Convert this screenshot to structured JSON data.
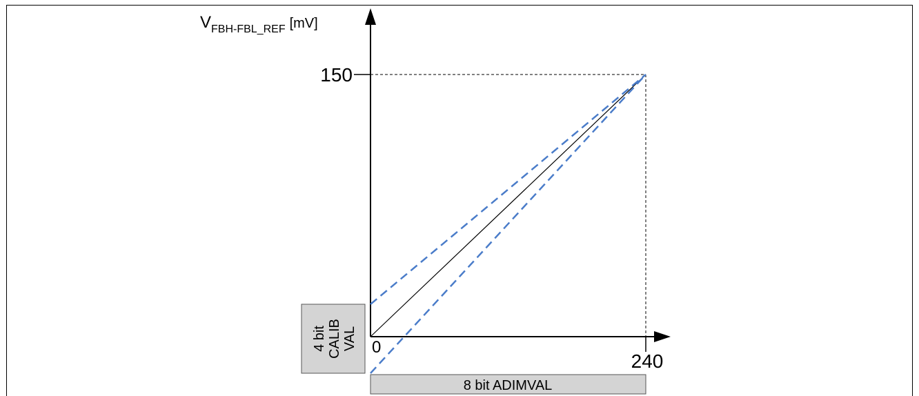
{
  "y_axis": {
    "label_main": "V",
    "label_sub": "FBH-FBL_REF",
    "label_unit": "[mV]",
    "tick_top": "150"
  },
  "x_axis": {
    "tick_origin": "0",
    "tick_right": "240"
  },
  "calib_box": {
    "line1": "4 bit",
    "line2": "CALIB",
    "line3": "VAL"
  },
  "adim_box": {
    "label": "8 bit ADIMVAL"
  },
  "colors": {
    "axis": "#000000",
    "dashed_blue": "#4a7cc9",
    "box_fill": "#d4d4d4"
  }
}
